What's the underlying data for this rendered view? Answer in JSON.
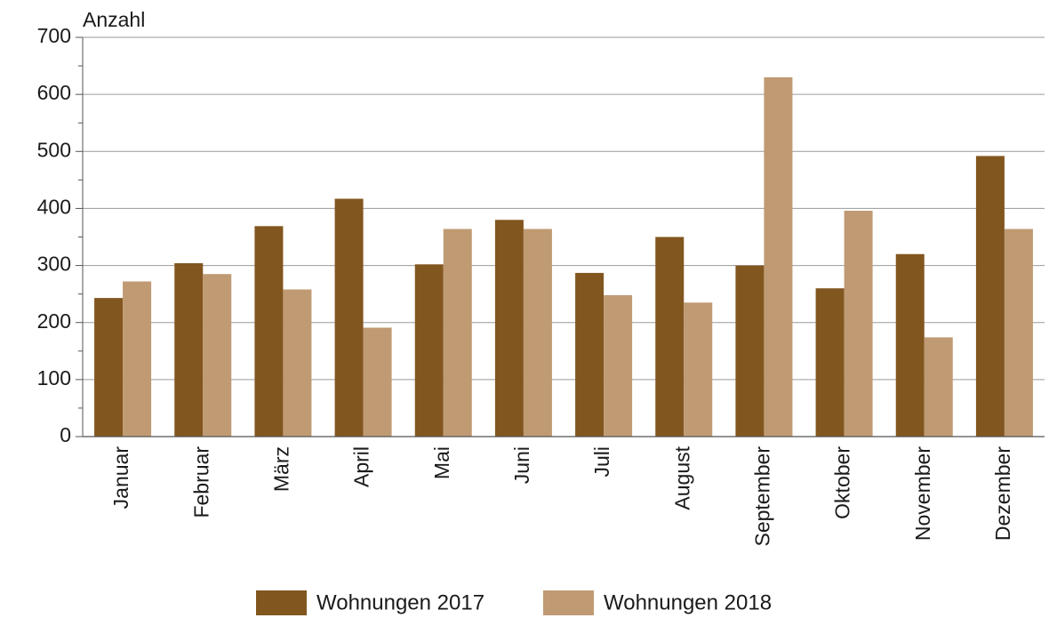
{
  "chart_data": {
    "type": "bar",
    "y_axis_label": "Anzahl",
    "categories": [
      "Januar",
      "Februar",
      "März",
      "April",
      "Mai",
      "Juni",
      "Juli",
      "August",
      "September",
      "Oktober",
      "November",
      "Dezember"
    ],
    "series": [
      {
        "name": "Wohnungen 2017",
        "color": "#82561f",
        "values": [
          243,
          304,
          369,
          417,
          302,
          380,
          287,
          350,
          300,
          260,
          320,
          492
        ]
      },
      {
        "name": "Wohnungen 2018",
        "color": "#c09a72",
        "values": [
          272,
          285,
          258,
          191,
          364,
          364,
          248,
          235,
          630,
          396,
          174,
          364
        ]
      }
    ],
    "ylim": [
      0,
      700
    ],
    "yticks": [
      0,
      100,
      200,
      300,
      400,
      500,
      600,
      700
    ],
    "minor_yticks": [
      50,
      150,
      250,
      350,
      450,
      550,
      650
    ],
    "grid": true,
    "legend": "bottom"
  }
}
